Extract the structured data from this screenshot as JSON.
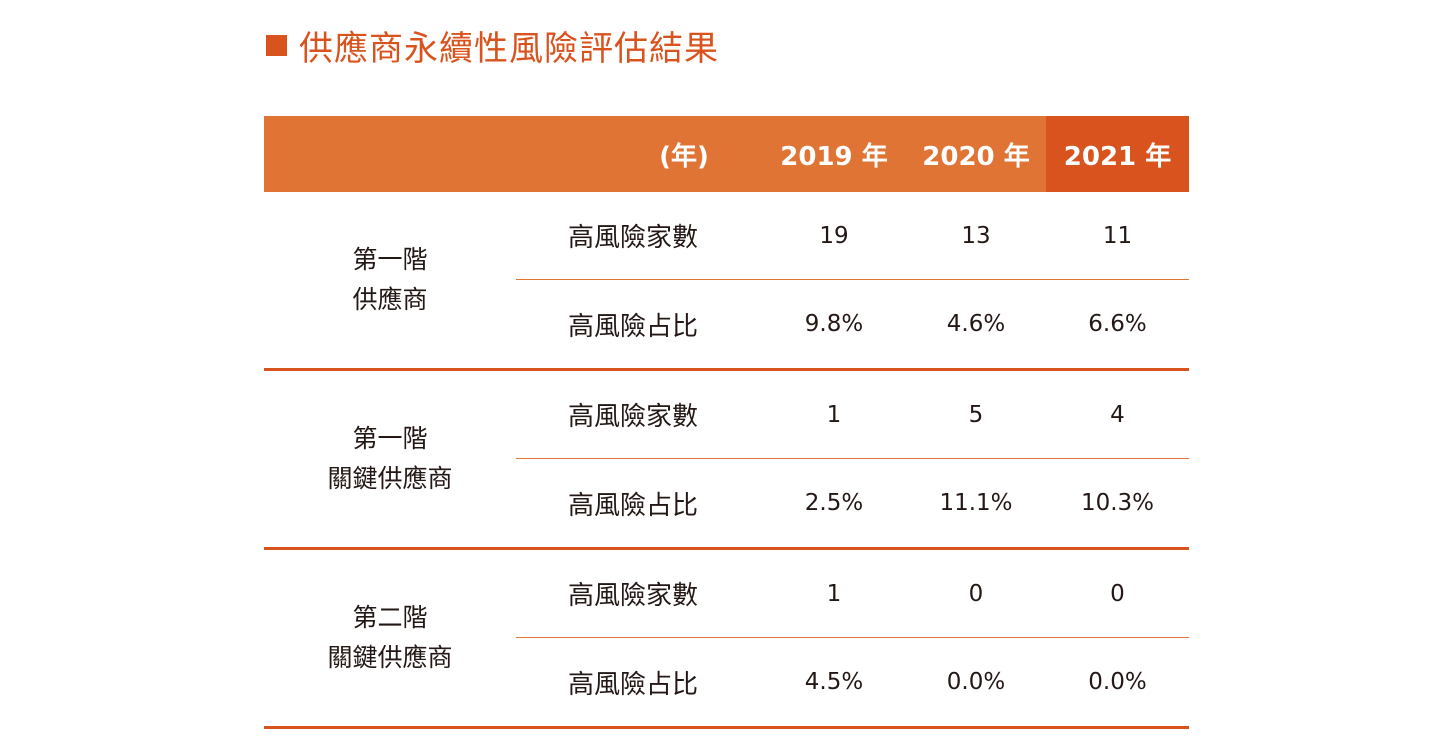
{
  "title": "供應商永續性風險評估結果",
  "header": {
    "unit": "(年)",
    "years": [
      "2019 年",
      "2020 年",
      "2021 年"
    ]
  },
  "groups": [
    {
      "label_line1": "第一階",
      "label_line2": "供應商",
      "rows": [
        {
          "metric": "高風險家數",
          "values": [
            "19",
            "13",
            "11"
          ]
        },
        {
          "metric": "高風險占比",
          "values": [
            "9.8%",
            "4.6%",
            "6.6%"
          ]
        }
      ]
    },
    {
      "label_line1": "第一階",
      "label_line2": "關鍵供應商",
      "rows": [
        {
          "metric": "高風險家數",
          "values": [
            "1",
            "5",
            "4"
          ]
        },
        {
          "metric": "高風險占比",
          "values": [
            "2.5%",
            "11.1%",
            "10.3%"
          ]
        }
      ]
    },
    {
      "label_line1": "第二階",
      "label_line2": "關鍵供應商",
      "rows": [
        {
          "metric": "高風險家數",
          "values": [
            "1",
            "0",
            "0"
          ]
        },
        {
          "metric": "高風險占比",
          "values": [
            "4.5%",
            "0.0%",
            "0.0%"
          ]
        }
      ]
    }
  ],
  "colors": {
    "accent": "#d9531e",
    "header_bg": "#e07434",
    "text": "#231815"
  }
}
